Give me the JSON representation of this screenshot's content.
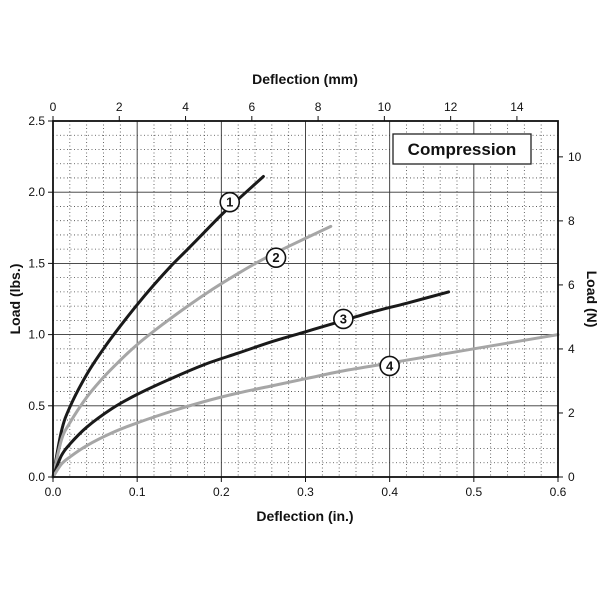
{
  "chart_data": {
    "type": "line",
    "title": "Compression",
    "xlabel": "Deflection (in.)",
    "ylabel": "Load (lbs.)",
    "x2label": "Deflection (mm)",
    "y2label": "Load (N)",
    "xlim": [
      0,
      0.6
    ],
    "ylim": [
      0,
      2.5
    ],
    "x2lim": [
      0,
      15.24
    ],
    "y2lim": [
      0,
      11.12
    ],
    "xticks": [
      "0.0",
      "0.1",
      "0.2",
      "0.3",
      "0.4",
      "0.5",
      "0.6"
    ],
    "yticks": [
      "0.0",
      "0.5",
      "1.0",
      "1.5",
      "2.0",
      "2.5"
    ],
    "x2ticks": [
      "0",
      "2",
      "4",
      "6",
      "8",
      "10",
      "12",
      "14"
    ],
    "y2ticks": [
      "0",
      "2",
      "4",
      "6",
      "8",
      "10"
    ],
    "grid": true,
    "series": [
      {
        "label": "1",
        "color": "#1a1a1a",
        "x": [
          0,
          0.01,
          0.02,
          0.04,
          0.06,
          0.08,
          0.1,
          0.12,
          0.14,
          0.16,
          0.18,
          0.2,
          0.22,
          0.25
        ],
        "y": [
          0,
          0.32,
          0.49,
          0.72,
          0.9,
          1.06,
          1.21,
          1.35,
          1.48,
          1.6,
          1.72,
          1.84,
          1.95,
          2.11
        ],
        "marker_x": 0.21,
        "marker_y": 1.93
      },
      {
        "label": "2",
        "color": "#a6a6a6",
        "x": [
          0,
          0.01,
          0.02,
          0.04,
          0.06,
          0.08,
          0.1,
          0.13,
          0.16,
          0.19,
          0.22,
          0.25,
          0.28,
          0.33
        ],
        "y": [
          0,
          0.26,
          0.38,
          0.56,
          0.7,
          0.82,
          0.93,
          1.07,
          1.2,
          1.32,
          1.43,
          1.53,
          1.62,
          1.76
        ],
        "marker_x": 0.265,
        "marker_y": 1.54
      },
      {
        "label": "3",
        "color": "#1a1a1a",
        "x": [
          0,
          0.01,
          0.02,
          0.04,
          0.07,
          0.1,
          0.14,
          0.18,
          0.22,
          0.26,
          0.3,
          0.34,
          0.38,
          0.42,
          0.47
        ],
        "y": [
          0,
          0.15,
          0.23,
          0.35,
          0.48,
          0.58,
          0.69,
          0.79,
          0.87,
          0.95,
          1.02,
          1.09,
          1.16,
          1.22,
          1.3
        ],
        "marker_x": 0.345,
        "marker_y": 1.11
      },
      {
        "label": "4",
        "color": "#a6a6a6",
        "x": [
          0,
          0.01,
          0.02,
          0.04,
          0.07,
          0.1,
          0.14,
          0.18,
          0.22,
          0.26,
          0.3,
          0.34,
          0.38,
          0.42,
          0.46,
          0.5,
          0.55,
          0.6
        ],
        "y": [
          0,
          0.09,
          0.14,
          0.22,
          0.31,
          0.38,
          0.46,
          0.53,
          0.59,
          0.64,
          0.69,
          0.74,
          0.78,
          0.82,
          0.86,
          0.9,
          0.95,
          1.0
        ],
        "marker_x": 0.4,
        "marker_y": 0.78
      }
    ]
  }
}
